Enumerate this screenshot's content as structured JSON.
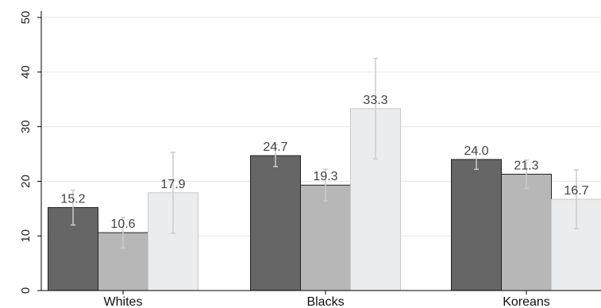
{
  "chart_data": {
    "type": "bar",
    "categories": [
      "Whites",
      "Blacks",
      "Koreans"
    ],
    "series": [
      {
        "values": [
          15.2,
          24.7,
          24.0
        ],
        "errors": [
          3.2,
          2.0,
          1.8
        ],
        "color": "#666666"
      },
      {
        "values": [
          10.6,
          19.3,
          21.3
        ],
        "errors": [
          2.8,
          2.9,
          2.6
        ],
        "color": "#b7b7b7"
      },
      {
        "values": [
          17.9,
          33.3,
          16.7
        ],
        "errors": [
          7.4,
          9.2,
          5.4
        ],
        "color": "#ebeced"
      }
    ],
    "data_labels": [
      [
        "15.2",
        "24.7",
        "24.0"
      ],
      [
        "10.6",
        "19.3",
        "21.3"
      ],
      [
        "17.9",
        "33.3",
        "16.7"
      ]
    ],
    "y_ticks": [
      0,
      10,
      20,
      30,
      40,
      50
    ],
    "y_tick_labels": [
      "0",
      "10",
      "20",
      "30",
      "40",
      "50"
    ],
    "ylim": [
      0,
      50
    ],
    "grid": true,
    "legend": "none",
    "title": "",
    "xlabel": "",
    "ylabel": "",
    "colors": {
      "gridline": "#e6e6e6",
      "axis": "#000000",
      "error_bar": "#cccccc",
      "bar_stroke": "#222222"
    }
  }
}
